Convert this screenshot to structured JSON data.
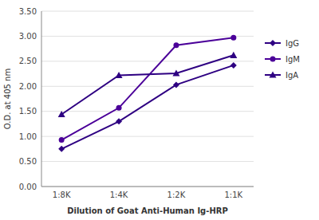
{
  "chart_data": {
    "type": "line",
    "xlabel": "Dilution of Goat Anti-Human Ig-HRP",
    "ylabel": "O.D. at 405 nm",
    "categories": [
      "1:8K",
      "1:4K",
      "1:2K",
      "1:1K"
    ],
    "series": [
      {
        "name": "IgG",
        "color": "#2e0082",
        "marker": "diamond",
        "values": [
          0.75,
          1.3,
          2.03,
          2.42
        ]
      },
      {
        "name": "IgM",
        "color": "#4b0099",
        "marker": "circle",
        "values": [
          0.93,
          1.57,
          2.82,
          2.97
        ]
      },
      {
        "name": "IgA",
        "color": "#2e0082",
        "marker": "triangle",
        "values": [
          1.44,
          2.22,
          2.26,
          2.62
        ]
      }
    ],
    "ylim": [
      0.0,
      3.5
    ],
    "yticks": [
      {
        "value": 0.0,
        "label": "0.00"
      },
      {
        "value": 0.5,
        "label": "0.50"
      },
      {
        "value": 1.0,
        "label": "1.00"
      },
      {
        "value": 1.5,
        "label": "1.50"
      },
      {
        "value": 2.0,
        "label": "2.00"
      },
      {
        "value": 2.5,
        "label": "2.50"
      },
      {
        "value": 3.0,
        "label": "3.00"
      },
      {
        "value": 3.5,
        "label": "3.50"
      }
    ],
    "grid": true,
    "legend": "right"
  }
}
